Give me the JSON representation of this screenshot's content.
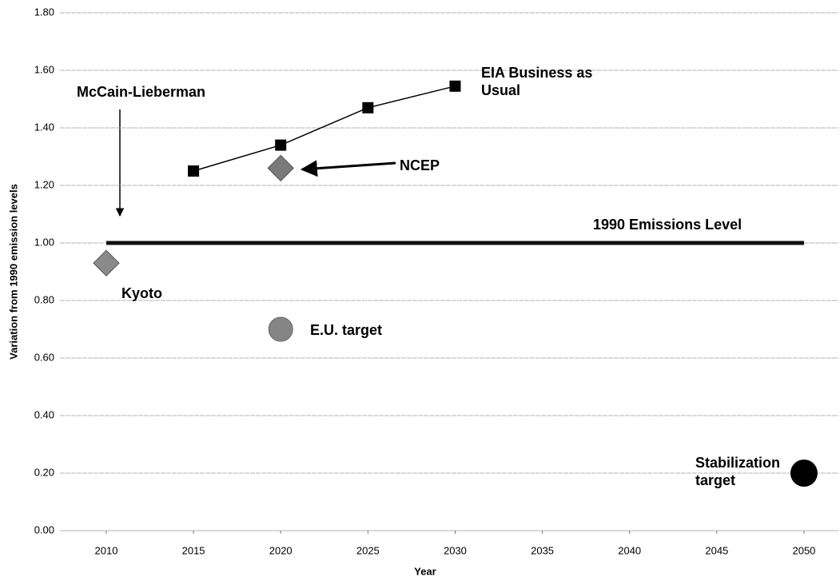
{
  "chart_data": {
    "type": "line",
    "xlabel": "Year",
    "ylabel": "Variation from 1990 emission levels",
    "xlim": [
      2007.5,
      2052
    ],
    "xticks": [
      2010,
      2015,
      2020,
      2025,
      2030,
      2035,
      2040,
      2045,
      2050
    ],
    "ylim": [
      0,
      1.8
    ],
    "yticks": [
      {
        "value": 0,
        "label": "0.00"
      },
      {
        "value": 0.2,
        "label": "0.20"
      },
      {
        "value": 0.4,
        "label": "0.40"
      },
      {
        "value": 0.6,
        "label": "0.60"
      },
      {
        "value": 0.8,
        "label": "0.80"
      },
      {
        "value": 1.0,
        "label": "1.00"
      },
      {
        "value": 1.2,
        "label": "1.20"
      },
      {
        "value": 1.4,
        "label": "1.40"
      },
      {
        "value": 1.6,
        "label": "1.60"
      },
      {
        "value": 1.8,
        "label": "1.80"
      }
    ],
    "grid": true,
    "series": [
      {
        "name": "EIA Business as Usual",
        "style": "line-square",
        "color": "#000000",
        "x": [
          2015,
          2020,
          2025,
          2030
        ],
        "values": [
          1.25,
          1.34,
          1.47,
          1.545
        ]
      },
      {
        "name": "1990 Emissions Level",
        "style": "thick-line",
        "color": "#111111",
        "x": [
          2010,
          2050
        ],
        "values": [
          1.0,
          1.0
        ]
      },
      {
        "name": "Kyoto",
        "style": "diamond",
        "color": "#8a8a8a",
        "x": [
          2010
        ],
        "values": [
          0.93
        ]
      },
      {
        "name": "NCEP",
        "style": "diamond",
        "color": "#7a7a7a",
        "x": [
          2020
        ],
        "values": [
          1.26
        ]
      },
      {
        "name": "E.U. target",
        "style": "circle",
        "color": "#858585",
        "x": [
          2020
        ],
        "values": [
          0.7
        ]
      },
      {
        "name": "Stabilization target",
        "style": "big-circle",
        "color": "#000000",
        "x": [
          2050
        ],
        "values": [
          0.2
        ]
      }
    ],
    "annotations": [
      "McCain-Lieberman"
    ]
  }
}
